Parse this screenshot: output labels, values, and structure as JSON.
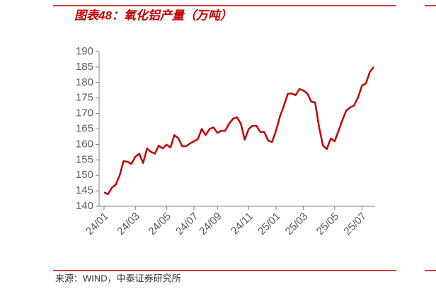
{
  "chart_data": {
    "type": "line",
    "title": "图表48：氧化铝产量（万吨）",
    "source": "来源：WIND，中泰证券研究所",
    "categories": [
      "24/01",
      null,
      null,
      null,
      null,
      null,
      null,
      null,
      "24/03",
      null,
      null,
      null,
      null,
      null,
      null,
      null,
      "24/05",
      null,
      null,
      null,
      null,
      null,
      null,
      "24/07",
      null,
      null,
      null,
      null,
      null,
      "24/09",
      null,
      null,
      null,
      null,
      null,
      null,
      null,
      "24/11",
      null,
      null,
      null,
      null,
      null,
      null,
      "25/01",
      null,
      null,
      null,
      null,
      null,
      null,
      "25/03",
      null,
      null,
      null,
      null,
      null,
      null,
      null,
      "25/05",
      null,
      null,
      null,
      null,
      null,
      null,
      "25/07",
      null,
      null,
      null
    ],
    "series": [
      {
        "color": "#c00000",
        "values": [
          144.5,
          143.9,
          146,
          147,
          150,
          154.6,
          154.4,
          153.7,
          156,
          157,
          154,
          158.7,
          157.6,
          157,
          159.6,
          158.7,
          159.9,
          159,
          163,
          162,
          159.4,
          159.4,
          160.3,
          161,
          161.7,
          165,
          163,
          165,
          165.5,
          163.7,
          164.4,
          164.4,
          166.7,
          168.3,
          168.8,
          166.7,
          161.5,
          165,
          166,
          166,
          164,
          164,
          161.2,
          160.8,
          164.4,
          169,
          172.4,
          176.3,
          176.5,
          175.9,
          177.9,
          177.4,
          176.5,
          173.8,
          173.6,
          165.8,
          159.6,
          158.5,
          161.9,
          161,
          164.4,
          167.9,
          171,
          172,
          172.6,
          175.2,
          179,
          179.7,
          183.4,
          185
        ]
      }
    ],
    "ylim": [
      140,
      190
    ],
    "yticks": [
      140,
      145,
      150,
      155,
      160,
      165,
      170,
      175,
      180,
      185,
      190
    ],
    "grid": false
  }
}
